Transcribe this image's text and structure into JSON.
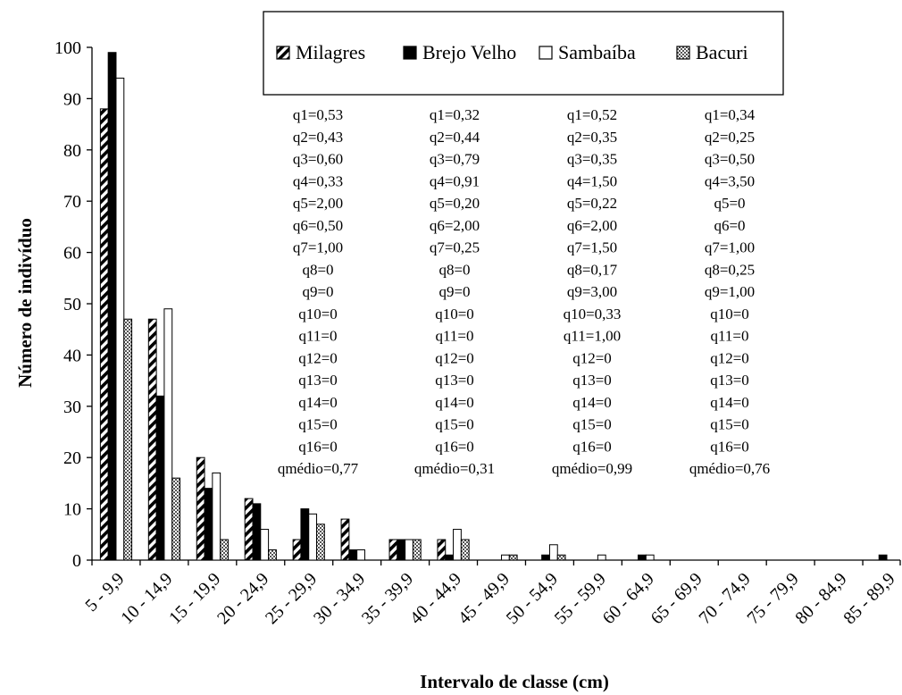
{
  "chart_data": {
    "type": "bar",
    "title": "",
    "xlabel": "Intervalo de classe (cm)",
    "ylabel": "Número de indivíduo",
    "ylim": [
      0,
      100
    ],
    "yticks": [
      0,
      10,
      20,
      30,
      40,
      50,
      60,
      70,
      80,
      90,
      100
    ],
    "grid": false,
    "legend_position": "top",
    "categories": [
      "5 - 9,9",
      "10 - 14,9",
      "15 - 19,9",
      "20 - 24,9",
      "25 - 29,9",
      "30 - 34,9",
      "35 - 39,9",
      "40 - 44,9",
      "45 - 49,9",
      "50 - 54,9",
      "55 - 59,9",
      "60 - 64,9",
      "65 - 69,9",
      "70 - 74,9",
      "75 - 79,9",
      "80 - 84,9",
      "85 - 89,9"
    ],
    "series": [
      {
        "name": "Milagres",
        "pattern": "hatch",
        "values": [
          88,
          47,
          20,
          12,
          4,
          8,
          4,
          4,
          0,
          0,
          0,
          0,
          0,
          0,
          0,
          0,
          0
        ]
      },
      {
        "name": "Brejo Velho",
        "pattern": "solid",
        "color": "#000000",
        "values": [
          99,
          32,
          14,
          11,
          10,
          2,
          4,
          1,
          0,
          1,
          0,
          1,
          0,
          0,
          0,
          0,
          1
        ]
      },
      {
        "name": "Sambaíba",
        "pattern": "empty",
        "color": "#ffffff",
        "values": [
          94,
          49,
          17,
          6,
          9,
          2,
          4,
          6,
          1,
          3,
          1,
          1,
          0,
          0,
          0,
          0,
          0
        ]
      },
      {
        "name": "Bacuri",
        "pattern": "crosshatch",
        "values": [
          47,
          16,
          4,
          2,
          7,
          0,
          4,
          4,
          1,
          1,
          0,
          0,
          0,
          0,
          0,
          0,
          0
        ]
      }
    ],
    "annotations": [
      [
        "q1=0,53",
        "q2=0,43",
        "q3=0,60",
        "q4=0,33",
        "q5=2,00",
        "q6=0,50",
        "q7=1,00",
        "q8=0",
        "q9=0",
        "q10=0",
        "q11=0",
        "q12=0",
        "q13=0",
        "q14=0",
        "q15=0",
        "q16=0",
        "qmédio=0,77"
      ],
      [
        "q1=0,32",
        "q2=0,44",
        "q3=0,79",
        "q4=0,91",
        "q5=0,20",
        "q6=2,00",
        "q7=0,25",
        "q8=0",
        "q9=0",
        "q10=0",
        "q11=0",
        "q12=0",
        "q13=0",
        "q14=0",
        "q15=0",
        "q16=0",
        "qmédio=0,31"
      ],
      [
        "q1=0,52",
        "q2=0,35",
        "q3=0,35",
        "q4=1,50",
        "q5=0,22",
        "q6=2,00",
        "q7=1,50",
        "q8=0,17",
        "q9=3,00",
        "q10=0,33",
        "q11=1,00",
        "q12=0",
        "q13=0",
        "q14=0",
        "q15=0",
        "q16=0",
        "qmédio=0,99"
      ],
      [
        "q1=0,34",
        "q2=0,25",
        "q3=0,50",
        "q4=3,50",
        "q5=0",
        "q6=0",
        "q7=1,00",
        "q8=0,25",
        "q9=1,00",
        "q10=0",
        "q11=0",
        "q12=0",
        "q13=0",
        "q14=0",
        "q15=0",
        "q16=0",
        "qmédio=0,76"
      ]
    ]
  }
}
